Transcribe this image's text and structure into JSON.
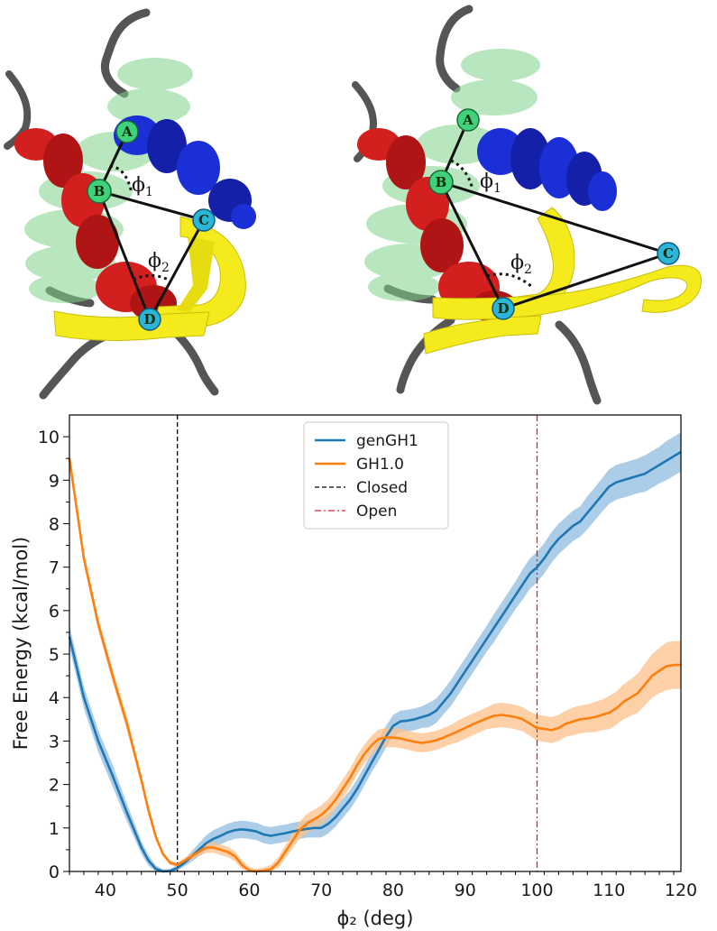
{
  "protein_panels": [
    {
      "atoms": [
        {
          "label": "A",
          "color": "#3fd27a"
        },
        {
          "label": "B",
          "color": "#3fd27a"
        },
        {
          "label": "C",
          "color": "#2bb6d8"
        },
        {
          "label": "D",
          "color": "#2bb6d8"
        }
      ],
      "angles": [
        {
          "symbol": "ϕ",
          "subscript": "1"
        },
        {
          "symbol": "ϕ",
          "subscript": "2"
        }
      ]
    },
    {
      "atoms": [
        {
          "label": "A",
          "color": "#3fd27a"
        },
        {
          "label": "B",
          "color": "#3fd27a"
        },
        {
          "label": "C",
          "color": "#2bb6d8"
        },
        {
          "label": "D",
          "color": "#2bb6d8"
        }
      ],
      "angles": [
        {
          "symbol": "ϕ",
          "subscript": "1"
        },
        {
          "symbol": "ϕ",
          "subscript": "2"
        }
      ]
    }
  ],
  "colors": {
    "helix_green": "#7fd38a",
    "helix_red": "#d41f1f",
    "helix_blue": "#1a2fd6",
    "sheet_yellow": "#f4ea1c",
    "coil_gray": "#555555"
  },
  "chart_data": {
    "type": "line",
    "xlabel": "ϕ₂ (deg)",
    "ylabel": "Free Energy (kcal/mol)",
    "xlim": [
      35,
      120
    ],
    "ylim": [
      0,
      10.5
    ],
    "xticks": [
      40,
      50,
      60,
      70,
      80,
      90,
      100,
      110,
      120
    ],
    "yticks": [
      0,
      1,
      2,
      3,
      4,
      5,
      6,
      7,
      8,
      9,
      10
    ],
    "legend_position": "top-center",
    "series": [
      {
        "name": "genGH1",
        "color": "#1f77b4",
        "band_color": "#8fbce0",
        "x": [
          35,
          37,
          39,
          41,
          43,
          45,
          46,
          47,
          48,
          49,
          50,
          51,
          52,
          53,
          54,
          55,
          56,
          57,
          58,
          59,
          60,
          61,
          62,
          63,
          64,
          65,
          66,
          67,
          68,
          69,
          70,
          71,
          72,
          73,
          74,
          75,
          76,
          77,
          78,
          79,
          80,
          81,
          82,
          83,
          84,
          85,
          86,
          87,
          88,
          89,
          90,
          91,
          92,
          93,
          94,
          95,
          96,
          97,
          98,
          99,
          100,
          101,
          102,
          103,
          104,
          105,
          106,
          107,
          108,
          109,
          110,
          111,
          112,
          113,
          114,
          115,
          116,
          117,
          118,
          119,
          120
        ],
        "y": [
          5.4,
          4.0,
          3.0,
          2.2,
          1.35,
          0.55,
          0.25,
          0.06,
          0.0,
          0.01,
          0.08,
          0.2,
          0.35,
          0.5,
          0.65,
          0.75,
          0.82,
          0.9,
          0.95,
          0.97,
          0.95,
          0.92,
          0.85,
          0.82,
          0.85,
          0.88,
          0.92,
          0.95,
          0.98,
          1.0,
          1.0,
          1.1,
          1.25,
          1.45,
          1.65,
          1.9,
          2.2,
          2.5,
          2.8,
          3.1,
          3.35,
          3.45,
          3.47,
          3.5,
          3.55,
          3.6,
          3.7,
          3.9,
          4.1,
          4.35,
          4.6,
          4.85,
          5.1,
          5.35,
          5.6,
          5.85,
          6.1,
          6.35,
          6.6,
          6.85,
          7.0,
          7.2,
          7.45,
          7.65,
          7.8,
          7.95,
          8.05,
          8.25,
          8.45,
          8.65,
          8.85,
          8.95,
          9.0,
          9.05,
          9.1,
          9.15,
          9.25,
          9.35,
          9.45,
          9.55,
          9.65
        ],
        "band": [
          0.25,
          0.25,
          0.25,
          0.25,
          0.2,
          0.15,
          0.12,
          0.08,
          0.05,
          0.05,
          0.06,
          0.08,
          0.12,
          0.15,
          0.18,
          0.2,
          0.2,
          0.2,
          0.2,
          0.2,
          0.2,
          0.2,
          0.2,
          0.2,
          0.2,
          0.2,
          0.2,
          0.2,
          0.2,
          0.22,
          0.22,
          0.22,
          0.22,
          0.22,
          0.22,
          0.22,
          0.22,
          0.22,
          0.25,
          0.25,
          0.25,
          0.25,
          0.25,
          0.25,
          0.25,
          0.28,
          0.28,
          0.28,
          0.3,
          0.3,
          0.3,
          0.3,
          0.3,
          0.3,
          0.32,
          0.32,
          0.32,
          0.32,
          0.35,
          0.35,
          0.35,
          0.35,
          0.35,
          0.35,
          0.35,
          0.35,
          0.35,
          0.38,
          0.38,
          0.38,
          0.4,
          0.4,
          0.4,
          0.4,
          0.4,
          0.42,
          0.42,
          0.42,
          0.45,
          0.45,
          0.45
        ]
      },
      {
        "name": "GH1.0",
        "color": "#ff7f0e",
        "band_color": "#fdc08a",
        "x": [
          35,
          37,
          39,
          41,
          43,
          45,
          46,
          47,
          48,
          49,
          50,
          51,
          52,
          53,
          54,
          55,
          56,
          57,
          58,
          59,
          60,
          61,
          62,
          63,
          64,
          65,
          66,
          67,
          68,
          69,
          70,
          71,
          72,
          73,
          74,
          75,
          76,
          77,
          78,
          79,
          80,
          81,
          82,
          83,
          84,
          85,
          86,
          87,
          88,
          89,
          90,
          91,
          92,
          93,
          94,
          95,
          96,
          97,
          98,
          99,
          100,
          101,
          102,
          103,
          104,
          105,
          106,
          107,
          108,
          109,
          110,
          111,
          112,
          113,
          114,
          115,
          116,
          117,
          118,
          119,
          120
        ],
        "y": [
          9.5,
          7.2,
          5.7,
          4.5,
          3.4,
          2.1,
          1.4,
          0.8,
          0.4,
          0.2,
          0.15,
          0.25,
          0.35,
          0.45,
          0.55,
          0.55,
          0.5,
          0.45,
          0.35,
          0.15,
          0.02,
          0.0,
          0.02,
          0.05,
          0.2,
          0.45,
          0.7,
          0.95,
          1.1,
          1.2,
          1.3,
          1.45,
          1.65,
          1.9,
          2.15,
          2.45,
          2.7,
          2.9,
          3.05,
          3.08,
          3.08,
          3.06,
          3.02,
          2.98,
          2.96,
          2.98,
          3.02,
          3.08,
          3.15,
          3.22,
          3.3,
          3.38,
          3.45,
          3.52,
          3.58,
          3.6,
          3.58,
          3.55,
          3.5,
          3.4,
          3.3,
          3.28,
          3.25,
          3.3,
          3.4,
          3.45,
          3.5,
          3.52,
          3.55,
          3.6,
          3.65,
          3.75,
          3.9,
          4.0,
          4.1,
          4.3,
          4.5,
          4.62,
          4.72,
          4.75,
          4.75
        ],
        "band": [
          0.15,
          0.15,
          0.15,
          0.15,
          0.15,
          0.12,
          0.1,
          0.08,
          0.05,
          0.05,
          0.05,
          0.06,
          0.08,
          0.1,
          0.12,
          0.12,
          0.12,
          0.12,
          0.12,
          0.1,
          0.08,
          0.06,
          0.08,
          0.1,
          0.12,
          0.15,
          0.18,
          0.2,
          0.22,
          0.22,
          0.22,
          0.22,
          0.22,
          0.22,
          0.22,
          0.22,
          0.22,
          0.22,
          0.22,
          0.22,
          0.22,
          0.22,
          0.22,
          0.22,
          0.22,
          0.22,
          0.22,
          0.22,
          0.22,
          0.25,
          0.25,
          0.25,
          0.25,
          0.25,
          0.28,
          0.28,
          0.28,
          0.28,
          0.28,
          0.28,
          0.3,
          0.3,
          0.3,
          0.3,
          0.3,
          0.32,
          0.32,
          0.32,
          0.35,
          0.35,
          0.38,
          0.38,
          0.4,
          0.42,
          0.45,
          0.48,
          0.5,
          0.52,
          0.55,
          0.55,
          0.55
        ]
      }
    ],
    "reference_lines": [
      {
        "name": "Closed",
        "x": 50,
        "color": "#000000",
        "style": "dashed"
      },
      {
        "name": "Open",
        "x": 100,
        "color": "#d62728",
        "style": "dashdot"
      }
    ]
  }
}
